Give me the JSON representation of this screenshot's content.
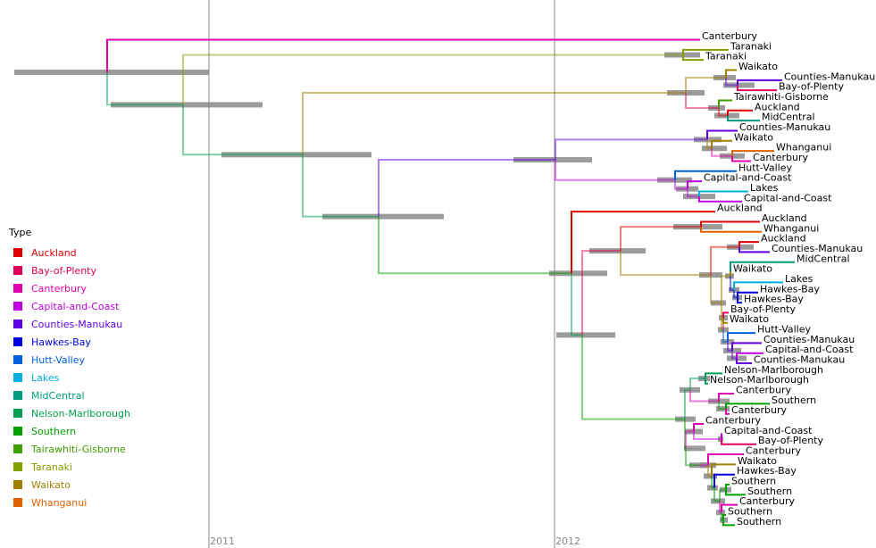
{
  "axis": {
    "ticks": [
      "2011",
      "2012"
    ]
  },
  "legend": {
    "title": "Type",
    "items": [
      {
        "label": "Auckland",
        "color": "#e00000"
      },
      {
        "label": "Bay-of-Plenty",
        "color": "#e0005a"
      },
      {
        "label": "Canterbury",
        "color": "#e000b0"
      },
      {
        "label": "Capital-and-Coast",
        "color": "#c000e0"
      },
      {
        "label": "Counties-Manukau",
        "color": "#6000e0"
      },
      {
        "label": "Hawkes-Bay",
        "color": "#0000e0"
      },
      {
        "label": "Hutt-Valley",
        "color": "#0060e0"
      },
      {
        "label": "Lakes",
        "color": "#00b0e0"
      },
      {
        "label": "MidCentral",
        "color": "#009a80"
      },
      {
        "label": "Nelson-Marlborough",
        "color": "#00a050"
      },
      {
        "label": "Southern",
        "color": "#00a000"
      },
      {
        "label": "Tairawhiti-Gisborne",
        "color": "#40a000"
      },
      {
        "label": "Taranaki",
        "color": "#80a000"
      },
      {
        "label": "Waikato",
        "color": "#a08000"
      },
      {
        "label": "Whanganui",
        "color": "#e06000"
      }
    ]
  },
  "tips": [
    "Canterbury",
    "Taranaki",
    "Taranaki",
    "Waikato",
    "Counties-Manukau",
    "Bay-of-Plenty",
    "Tairawhiti-Gisborne",
    "Auckland",
    "MidCentral",
    "Counties-Manukau",
    "Waikato",
    "Whanganui",
    "Canterbury",
    "Hutt-Valley",
    "Capital-and-Coast",
    "Lakes",
    "Capital-and-Coast",
    "Auckland",
    "Auckland",
    "Whanganui",
    "Auckland",
    "Counties-Manukau",
    "MidCentral",
    "Waikato",
    "Lakes",
    "Hawkes-Bay",
    "Hawkes-Bay",
    "Bay-of-Plenty",
    "Waikato",
    "Hutt-Valley",
    "Counties-Manukau",
    "Capital-and-Coast",
    "Counties-Manukau",
    "Nelson-Marlborough",
    "Nelson-Marlborough",
    "Canterbury",
    "Southern",
    "Canterbury",
    "Canterbury",
    "Capital-and-Coast",
    "Bay-of-Plenty",
    "Canterbury",
    "Waikato",
    "Hawkes-Bay",
    "Southern",
    "Southern",
    "Canterbury",
    "Southern",
    "Southern"
  ]
}
